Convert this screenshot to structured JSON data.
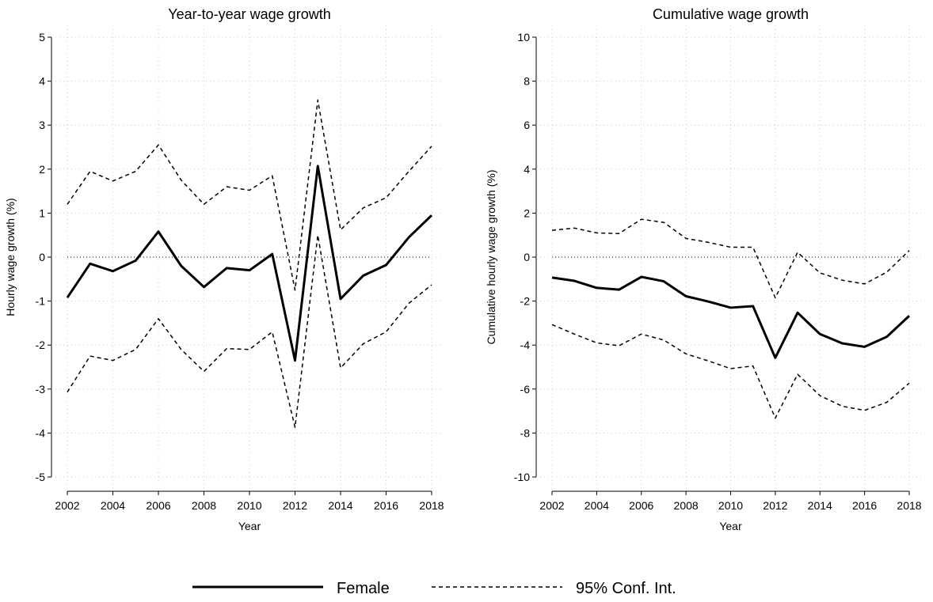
{
  "chart_data": [
    {
      "type": "line",
      "title": "Year-to-year wage growth",
      "xlabel": "Year",
      "ylabel": "Hourly wage growth (%)",
      "x": [
        2002,
        2003,
        2004,
        2005,
        2006,
        2007,
        2008,
        2009,
        2010,
        2011,
        2012,
        2013,
        2014,
        2015,
        2016,
        2017,
        2018
      ],
      "xlim": [
        2002,
        2018
      ],
      "xticks": [
        2002,
        2004,
        2006,
        2008,
        2010,
        2012,
        2014,
        2016,
        2018
      ],
      "ylim": [
        -5,
        5
      ],
      "yticks": [
        -5,
        -4,
        -3,
        -2,
        -1,
        0,
        1,
        2,
        3,
        4,
        5
      ],
      "grid": true,
      "reference_line": 0,
      "series": [
        {
          "name": "Female",
          "color": "#000000",
          "style": "solid",
          "values": [
            -0.92,
            -0.15,
            -0.32,
            -0.08,
            0.58,
            -0.2,
            -0.68,
            -0.25,
            -0.3,
            0.07,
            -2.35,
            2.07,
            -0.95,
            -0.42,
            -0.18,
            0.45,
            0.95
          ]
        },
        {
          "name": "95% Conf. Int.",
          "color": "#000000",
          "style": "dashed",
          "values": [
            1.2,
            1.95,
            1.73,
            1.95,
            2.55,
            1.75,
            1.2,
            1.6,
            1.52,
            1.85,
            -0.75,
            3.57,
            0.62,
            1.12,
            1.35,
            1.95,
            2.52
          ]
        },
        {
          "color": "#000000",
          "style": "dashed",
          "values": [
            -3.07,
            -2.25,
            -2.35,
            -2.1,
            -1.4,
            -2.1,
            -2.6,
            -2.08,
            -2.1,
            -1.7,
            -3.87,
            0.5,
            -2.52,
            -1.97,
            -1.7,
            -1.05,
            -0.63
          ]
        }
      ]
    },
    {
      "type": "line",
      "title": "Cumulative wage growth",
      "xlabel": "Year",
      "ylabel": "Cumulative hourly wage growth (%)",
      "x": [
        2002,
        2003,
        2004,
        2005,
        2006,
        2007,
        2008,
        2009,
        2010,
        2011,
        2012,
        2013,
        2014,
        2015,
        2016,
        2017,
        2018
      ],
      "xlim": [
        2002,
        2018
      ],
      "xticks": [
        2002,
        2004,
        2006,
        2008,
        2010,
        2012,
        2014,
        2016,
        2018
      ],
      "ylim": [
        -10,
        10
      ],
      "yticks": [
        -10,
        -8,
        -6,
        -4,
        -2,
        0,
        2,
        4,
        6,
        8,
        10
      ],
      "grid": true,
      "reference_line": 0,
      "series": [
        {
          "color": "#000000",
          "style": "solid",
          "values": [
            -0.93,
            -1.08,
            -1.4,
            -1.48,
            -0.9,
            -1.1,
            -1.78,
            -2.02,
            -2.3,
            -2.23,
            -4.58,
            -2.53,
            -3.5,
            -3.92,
            -4.08,
            -3.62,
            -2.67
          ]
        },
        {
          "color": "#000000",
          "style": "dashed",
          "values": [
            1.22,
            1.32,
            1.1,
            1.07,
            1.72,
            1.58,
            0.85,
            0.67,
            0.45,
            0.45,
            -1.85,
            0.22,
            -0.72,
            -1.05,
            -1.22,
            -0.68,
            0.3
          ]
        },
        {
          "color": "#000000",
          "style": "dashed",
          "values": [
            -3.07,
            -3.5,
            -3.9,
            -4.03,
            -3.5,
            -3.77,
            -4.4,
            -4.72,
            -5.07,
            -4.95,
            -7.32,
            -5.33,
            -6.3,
            -6.78,
            -6.97,
            -6.6,
            -5.73
          ]
        }
      ]
    }
  ]
}
